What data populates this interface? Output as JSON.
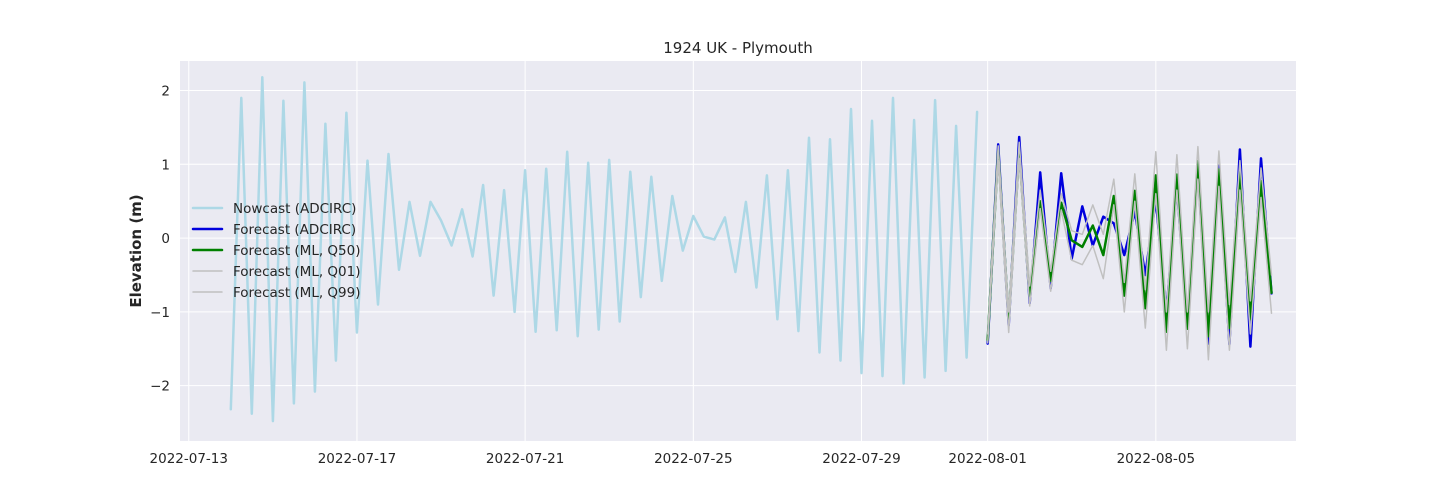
{
  "chart_data": {
    "type": "line",
    "title": "1924 UK - Plymouth",
    "xlabel": "",
    "ylabel": "Elevation (m)",
    "ylim": [
      -2.75,
      2.4
    ],
    "xlim": [
      "2022-07-12T19:00",
      "2022-08-08T08:00"
    ],
    "yticks": [
      2,
      1,
      0,
      -1,
      -2
    ],
    "ytick_labels": [
      "2",
      "1",
      "0",
      "−1",
      "−2"
    ],
    "xticks": [
      "2022-07-13",
      "2022-07-17",
      "2022-07-21",
      "2022-07-25",
      "2022-07-29",
      "2022-08-01",
      "2022-08-05"
    ],
    "grid": true,
    "legend_position": "center-left",
    "series": [
      {
        "name": "Nowcast (ADCIRC)",
        "color": "#add8e6",
        "width": 2.5,
        "x": [
          "2022-07-14T00:00",
          "2022-07-14T06:00",
          "2022-07-14T12:00",
          "2022-07-14T18:00",
          "2022-07-15T00:00",
          "2022-07-15T06:00",
          "2022-07-15T12:00",
          "2022-07-15T18:00",
          "2022-07-16T00:00",
          "2022-07-16T06:00",
          "2022-07-16T12:00",
          "2022-07-16T18:00",
          "2022-07-17T00:00",
          "2022-07-17T06:00",
          "2022-07-17T12:00",
          "2022-07-17T18:00",
          "2022-07-18T00:00",
          "2022-07-18T06:00",
          "2022-07-18T12:00",
          "2022-07-18T18:00",
          "2022-07-19T00:00",
          "2022-07-19T06:00",
          "2022-07-19T12:00",
          "2022-07-19T18:00",
          "2022-07-20T00:00",
          "2022-07-20T06:00",
          "2022-07-20T12:00",
          "2022-07-20T18:00",
          "2022-07-21T00:00",
          "2022-07-21T06:00",
          "2022-07-21T12:00",
          "2022-07-21T18:00",
          "2022-07-22T00:00",
          "2022-07-22T06:00",
          "2022-07-22T12:00",
          "2022-07-22T18:00",
          "2022-07-23T00:00",
          "2022-07-23T06:00",
          "2022-07-23T12:00",
          "2022-07-23T18:00",
          "2022-07-24T00:00",
          "2022-07-24T06:00",
          "2022-07-24T12:00",
          "2022-07-24T18:00",
          "2022-07-25T00:00",
          "2022-07-25T06:00",
          "2022-07-25T12:00",
          "2022-07-25T18:00",
          "2022-07-26T00:00",
          "2022-07-26T06:00",
          "2022-07-26T12:00",
          "2022-07-26T18:00",
          "2022-07-27T00:00",
          "2022-07-27T06:00",
          "2022-07-27T12:00",
          "2022-07-27T18:00",
          "2022-07-28T00:00",
          "2022-07-28T06:00",
          "2022-07-28T12:00",
          "2022-07-28T18:00",
          "2022-07-29T00:00",
          "2022-07-29T06:00",
          "2022-07-29T12:00",
          "2022-07-29T18:00",
          "2022-07-30T00:00",
          "2022-07-30T06:00",
          "2022-07-30T12:00",
          "2022-07-30T18:00",
          "2022-07-31T00:00",
          "2022-07-31T06:00",
          "2022-07-31T12:00",
          "2022-07-31T18:00"
        ],
        "y": [
          -2.32,
          1.9,
          -2.38,
          2.18,
          -2.48,
          1.86,
          -2.24,
          2.11,
          -2.08,
          1.55,
          -1.66,
          1.7,
          -1.28,
          1.05,
          -0.9,
          1.14,
          -0.43,
          0.49,
          -0.24,
          0.49,
          0.24,
          -0.1,
          0.39,
          -0.25,
          0.72,
          -0.78,
          0.65,
          -1.0,
          0.92,
          -1.27,
          0.94,
          -1.25,
          1.17,
          -1.33,
          1.02,
          -1.24,
          1.06,
          -1.13,
          0.9,
          -0.8,
          0.83,
          -0.58,
          0.57,
          -0.17,
          0.3,
          0.02,
          -0.02,
          0.28,
          -0.46,
          0.49,
          -0.67,
          0.85,
          -1.1,
          0.92,
          -1.26,
          1.36,
          -1.55,
          1.34,
          -1.66,
          1.75,
          -1.83,
          1.59,
          -1.87,
          1.9,
          -1.97,
          1.6,
          -1.89,
          1.87,
          -1.8,
          1.52,
          -1.62,
          1.71
        ]
      },
      {
        "name": "Forecast (ADCIRC)",
        "color": "#0000dd",
        "width": 2.5,
        "x": [
          "2022-08-01T00:00",
          "2022-08-01T06:00",
          "2022-08-01T12:00",
          "2022-08-01T18:00",
          "2022-08-02T00:00",
          "2022-08-02T06:00",
          "2022-08-02T12:00",
          "2022-08-02T18:00",
          "2022-08-03T00:00",
          "2022-08-03T06:00",
          "2022-08-03T12:00",
          "2022-08-03T18:00",
          "2022-08-04T00:00",
          "2022-08-04T06:00",
          "2022-08-04T12:00",
          "2022-08-04T18:00",
          "2022-08-05T00:00",
          "2022-08-05T06:00",
          "2022-08-05T12:00",
          "2022-08-05T18:00",
          "2022-08-06T00:00",
          "2022-08-06T06:00",
          "2022-08-06T12:00",
          "2022-08-06T18:00",
          "2022-08-07T00:00",
          "2022-08-07T06:00",
          "2022-08-07T12:00",
          "2022-08-07T18:00"
        ],
        "y": [
          -1.43,
          1.27,
          -1.18,
          1.37,
          -0.88,
          0.89,
          -0.68,
          0.88,
          -0.28,
          0.43,
          -0.1,
          0.29,
          0.2,
          -0.23,
          0.36,
          -0.5,
          0.52,
          -1.0,
          0.7,
          -1.2,
          0.95,
          -1.43,
          0.98,
          -1.44,
          1.2,
          -1.47,
          1.08,
          -0.75
        ]
      },
      {
        "name": "Forecast (ML, Q50)",
        "color": "#008000",
        "width": 2.5,
        "x": [
          "2022-08-01T00:00",
          "2022-08-01T06:00",
          "2022-08-01T12:00",
          "2022-08-01T18:00",
          "2022-08-02T00:00",
          "2022-08-02T06:00",
          "2022-08-02T12:00",
          "2022-08-02T18:00",
          "2022-08-03T00:00",
          "2022-08-03T06:00",
          "2022-08-03T12:00",
          "2022-08-03T18:00",
          "2022-08-04T00:00",
          "2022-08-04T06:00",
          "2022-08-04T12:00",
          "2022-08-04T18:00",
          "2022-08-05T00:00",
          "2022-08-05T06:00",
          "2022-08-05T12:00",
          "2022-08-05T18:00",
          "2022-08-06T00:00",
          "2022-08-06T06:00",
          "2022-08-06T12:00",
          "2022-08-06T18:00",
          "2022-08-07T00:00",
          "2022-08-07T06:00",
          "2022-08-07T12:00",
          "2022-08-07T18:00"
        ],
        "y": [
          -1.38,
          1.18,
          -1.12,
          1.18,
          -0.8,
          0.5,
          -0.58,
          0.48,
          -0.03,
          -0.12,
          0.17,
          -0.23,
          0.57,
          -0.78,
          0.64,
          -0.95,
          0.85,
          -1.27,
          0.86,
          -1.23,
          1.04,
          -1.33,
          0.93,
          -1.22,
          0.92,
          -1.1,
          0.77,
          -0.74
        ]
      },
      {
        "name": "Forecast (ML, Q01)",
        "color": "#c0c0c0",
        "width": 1.5,
        "x": [
          "2022-08-01T00:00",
          "2022-08-01T06:00",
          "2022-08-01T12:00",
          "2022-08-01T18:00",
          "2022-08-02T00:00",
          "2022-08-02T06:00",
          "2022-08-02T12:00",
          "2022-08-02T18:00",
          "2022-08-03T00:00",
          "2022-08-03T06:00",
          "2022-08-03T12:00",
          "2022-08-03T18:00",
          "2022-08-04T00:00",
          "2022-08-04T06:00",
          "2022-08-04T12:00",
          "2022-08-04T18:00",
          "2022-08-05T00:00",
          "2022-08-05T06:00",
          "2022-08-05T12:00",
          "2022-08-05T18:00",
          "2022-08-06T00:00",
          "2022-08-06T06:00",
          "2022-08-06T12:00",
          "2022-08-06T18:00",
          "2022-08-07T00:00",
          "2022-08-07T06:00",
          "2022-08-07T12:00",
          "2022-08-07T18:00"
        ],
        "y": [
          -1.42,
          1.05,
          -1.28,
          1.08,
          -0.92,
          0.4,
          -0.72,
          0.38,
          -0.3,
          -0.36,
          -0.1,
          -0.55,
          0.45,
          -1.0,
          0.5,
          -1.22,
          0.6,
          -1.52,
          0.65,
          -1.5,
          0.8,
          -1.65,
          0.7,
          -1.52,
          0.65,
          -1.3,
          0.55,
          -1.02
        ]
      },
      {
        "name": "Forecast (ML, Q99)",
        "color": "#c0c0c0",
        "width": 1.5,
        "x": [
          "2022-08-01T00:00",
          "2022-08-01T06:00",
          "2022-08-01T12:00",
          "2022-08-01T18:00",
          "2022-08-02T00:00",
          "2022-08-02T06:00",
          "2022-08-02T12:00",
          "2022-08-02T18:00",
          "2022-08-03T00:00",
          "2022-08-03T06:00",
          "2022-08-03T12:00",
          "2022-08-03T18:00",
          "2022-08-04T00:00",
          "2022-08-04T06:00",
          "2022-08-04T12:00",
          "2022-08-04T18:00",
          "2022-08-05T00:00",
          "2022-08-05T06:00",
          "2022-08-05T12:00",
          "2022-08-05T18:00",
          "2022-08-06T00:00",
          "2022-08-06T06:00",
          "2022-08-06T12:00",
          "2022-08-06T18:00",
          "2022-08-07T00:00",
          "2022-08-07T06:00",
          "2022-08-07T12:00",
          "2022-08-07T18:00"
        ],
        "y": [
          -1.3,
          1.25,
          -1.0,
          1.3,
          -0.65,
          0.65,
          -0.45,
          0.6,
          0.1,
          0.05,
          0.45,
          0.05,
          0.8,
          -0.6,
          0.87,
          -0.7,
          1.17,
          -1.0,
          1.13,
          -1.0,
          1.24,
          -1.0,
          1.18,
          -0.9,
          1.05,
          -0.85,
          0.95,
          -0.5
        ]
      }
    ]
  }
}
